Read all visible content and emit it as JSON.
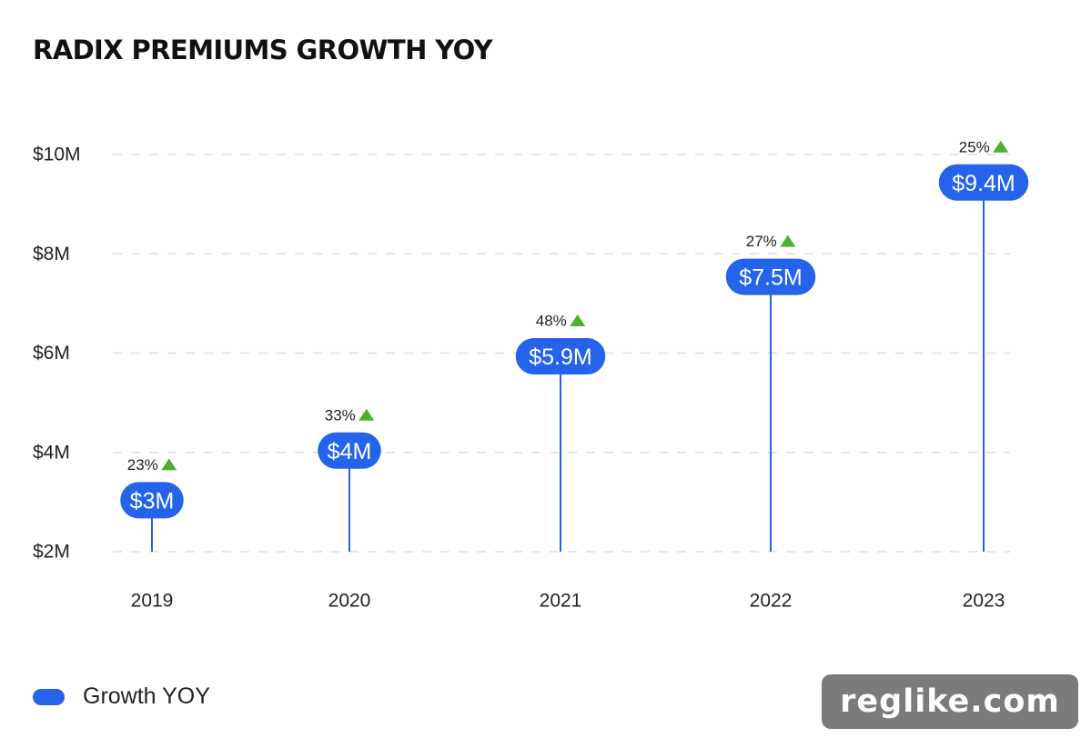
{
  "title": "RADIX PREMIUMS GROWTH YOY",
  "legend": {
    "label": "Growth YOY"
  },
  "watermark": "reglike.com",
  "colors": {
    "accent": "#2563eb",
    "growth_up": "#4caf2f",
    "grid": "#dddddd",
    "text": "#222222"
  },
  "chart_data": {
    "type": "bar",
    "title": "RADIX PREMIUMS GROWTH YOY",
    "xlabel": "",
    "ylabel": "",
    "categories": [
      "2019",
      "2020",
      "2021",
      "2022",
      "2023"
    ],
    "series": [
      {
        "name": "Growth YOY",
        "values": [
          3,
          4,
          5.9,
          7.5,
          9.4
        ],
        "value_labels": [
          "$3M",
          "$4M",
          "$5.9M",
          "$7.5M",
          "$9.4M"
        ]
      }
    ],
    "growth_labels": [
      "23%",
      "33%",
      "48%",
      "27%",
      "25%"
    ],
    "growth_direction": [
      "up",
      "up",
      "up",
      "up",
      "up"
    ],
    "ylim": [
      2,
      10
    ],
    "yticks": [
      2,
      4,
      6,
      8,
      10
    ],
    "ytick_labels": [
      "$2M",
      "$4M",
      "$6M",
      "$8M",
      "$10M"
    ],
    "grid": true,
    "legend_position": "bottom-left"
  }
}
